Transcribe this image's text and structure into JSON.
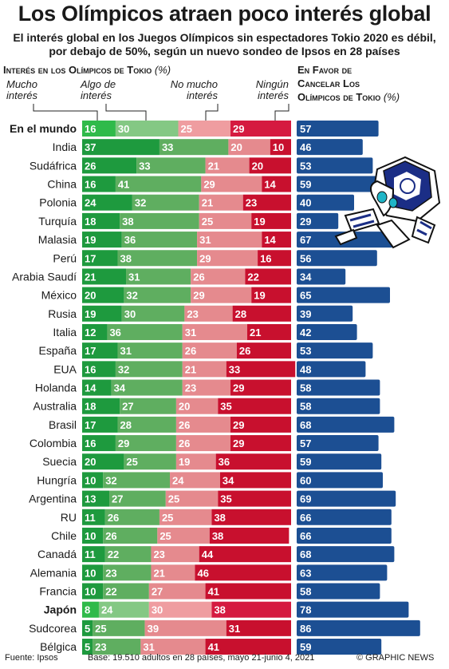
{
  "title": "Los Olímpicos atraen poco interés global",
  "subtitle": "El interés global en los Juegos Olímpicos sin espectadores Tokio 2020 es débil, por debajo de 50%, según un nuevo sondeo de Ipsos en 28 países",
  "left_header": "Interés en los Olímpicos de Tokio",
  "left_header_unit": "(%)",
  "right_header_lines": [
    "En Favor de",
    "Cancelar Los",
    "Olímpicos de Tokio"
  ],
  "right_header_unit": "(%)",
  "categories": [
    "Mucho interés",
    "Algo de interés",
    "No mucho interés",
    "Ningún interés"
  ],
  "colors": {
    "mucho": "#1e9a3e",
    "algo": "#5fae60",
    "no_mucho": "#e58a8e",
    "ningun": "#c8102e",
    "favor": "#1c4f93",
    "mucho_hl": "#2fba4a",
    "algo_hl": "#84c884",
    "no_mucho_hl": "#ef9da0",
    "ningun_hl": "#d51a40"
  },
  "footer": {
    "source": "Fuente: Ipsos",
    "base": "Base: 19.510 adultos en 28 países, mayo 21-junio 4, 2021",
    "credit": "© GRAPHIC NEWS"
  },
  "chart_data": [
    {
      "type": "bar",
      "stacked": true,
      "title": "Interés en los Olímpicos de Tokio (%)",
      "categories": [
        "En el mundo",
        "India",
        "Sudáfrica",
        "China",
        "Polonia",
        "Turquía",
        "Malasia",
        "Perú",
        "Arabia Saudí",
        "México",
        "Rusia",
        "Italia",
        "España",
        "EUA",
        "Holanda",
        "Australia",
        "Brasil",
        "Colombia",
        "Suecia",
        "Hungría",
        "Argentina",
        "RU",
        "Chile",
        "Canadá",
        "Alemania",
        "Francia",
        "Japón",
        "Sudcorea",
        "Bélgica"
      ],
      "highlighted": [
        "En el mundo",
        "Japón"
      ],
      "series": [
        {
          "name": "Mucho interés",
          "values": [
            16,
            37,
            26,
            16,
            24,
            18,
            19,
            17,
            21,
            20,
            19,
            12,
            17,
            16,
            14,
            18,
            17,
            16,
            20,
            10,
            13,
            11,
            10,
            11,
            10,
            10,
            8,
            5,
            5
          ]
        },
        {
          "name": "Algo de interés",
          "values": [
            30,
            33,
            33,
            41,
            32,
            38,
            36,
            38,
            31,
            32,
            30,
            36,
            31,
            32,
            34,
            27,
            28,
            29,
            25,
            32,
            27,
            26,
            26,
            22,
            23,
            22,
            24,
            25,
            23
          ]
        },
        {
          "name": "No mucho interés",
          "values": [
            25,
            20,
            21,
            29,
            21,
            25,
            31,
            29,
            26,
            29,
            23,
            31,
            26,
            21,
            23,
            20,
            26,
            26,
            19,
            24,
            25,
            25,
            25,
            23,
            21,
            27,
            30,
            39,
            31
          ]
        },
        {
          "name": "Ningún interés",
          "values": [
            29,
            10,
            20,
            14,
            23,
            19,
            14,
            16,
            22,
            19,
            28,
            21,
            26,
            33,
            29,
            35,
            29,
            29,
            36,
            34,
            35,
            38,
            38,
            44,
            46,
            41,
            38,
            31,
            41
          ]
        }
      ]
    },
    {
      "type": "bar",
      "title": "En Favor de Cancelar Los Olímpicos de Tokio (%)",
      "categories": [
        "En el mundo",
        "India",
        "Sudáfrica",
        "China",
        "Polonia",
        "Turquía",
        "Malasia",
        "Perú",
        "Arabia Saudí",
        "México",
        "Rusia",
        "Italia",
        "España",
        "EUA",
        "Holanda",
        "Australia",
        "Brasil",
        "Colombia",
        "Suecia",
        "Hungría",
        "Argentina",
        "RU",
        "Chile",
        "Canadá",
        "Alemania",
        "Francia",
        "Japón",
        "Sudcorea",
        "Bélgica"
      ],
      "values": [
        57,
        46,
        53,
        59,
        40,
        29,
        67,
        56,
        34,
        65,
        39,
        42,
        53,
        48,
        58,
        58,
        68,
        57,
        59,
        60,
        69,
        66,
        66,
        68,
        63,
        58,
        78,
        86,
        59
      ]
    }
  ]
}
